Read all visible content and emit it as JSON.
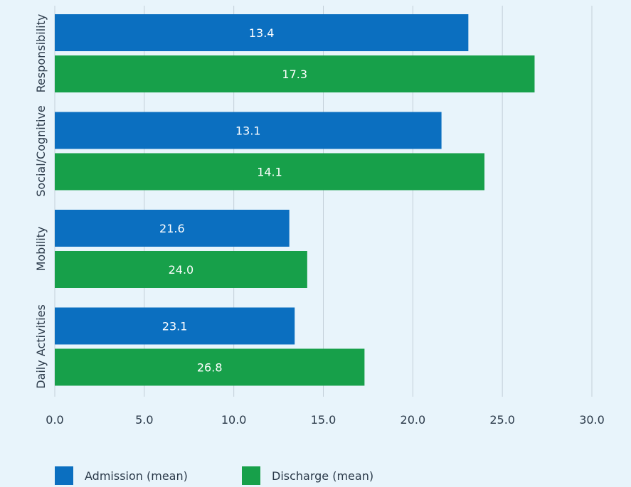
{
  "chart_data": {
    "type": "bar",
    "orientation": "horizontal",
    "categories": [
      "Responsibility",
      "Social/Cognitive",
      "Mobility",
      "Daily Activities"
    ],
    "series": [
      {
        "name": "Admission (mean)",
        "color": "#0b6fc0",
        "values": [
          23.1,
          21.6,
          13.1,
          13.4
        ],
        "labels": [
          "13.4",
          "13.1",
          "21.6",
          "23.1"
        ]
      },
      {
        "name": "Discharge (mean)",
        "color": "#17a04a",
        "values": [
          26.8,
          24.0,
          14.1,
          17.3
        ],
        "labels": [
          "17.3",
          "14.1",
          "24.0",
          "26.8"
        ]
      }
    ],
    "xlim": [
      0,
      30
    ],
    "xticks": [
      "0.0",
      "5.0",
      "10.0",
      "15.0",
      "20.0",
      "25.0",
      "30.0"
    ],
    "grid": true,
    "legend": "bottom-left"
  }
}
